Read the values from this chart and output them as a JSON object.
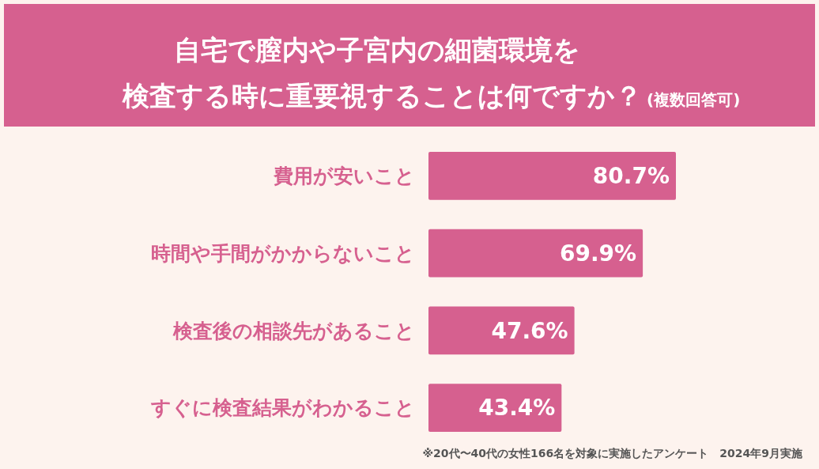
{
  "chart_data": {
    "type": "bar",
    "orientation": "horizontal",
    "title": "自宅で膣内や子宮内の細菌環境を検査する時に重要視することは何ですか？",
    "subtitle": "(複数回答可)",
    "categories": [
      "費用が安いこと",
      "時間や手間がかからないこと",
      "検査後の相談先があること",
      "すぐに検査結果がわかること"
    ],
    "values": [
      80.7,
      69.9,
      47.6,
      43.4
    ],
    "value_labels": [
      "80.7%",
      "69.9%",
      "47.6%",
      "43.4%"
    ],
    "color": "#d6608f",
    "annotations": [
      "※20代〜40代の女性166名を対象に実施したアンケート　2024年9月実施"
    ]
  }
}
